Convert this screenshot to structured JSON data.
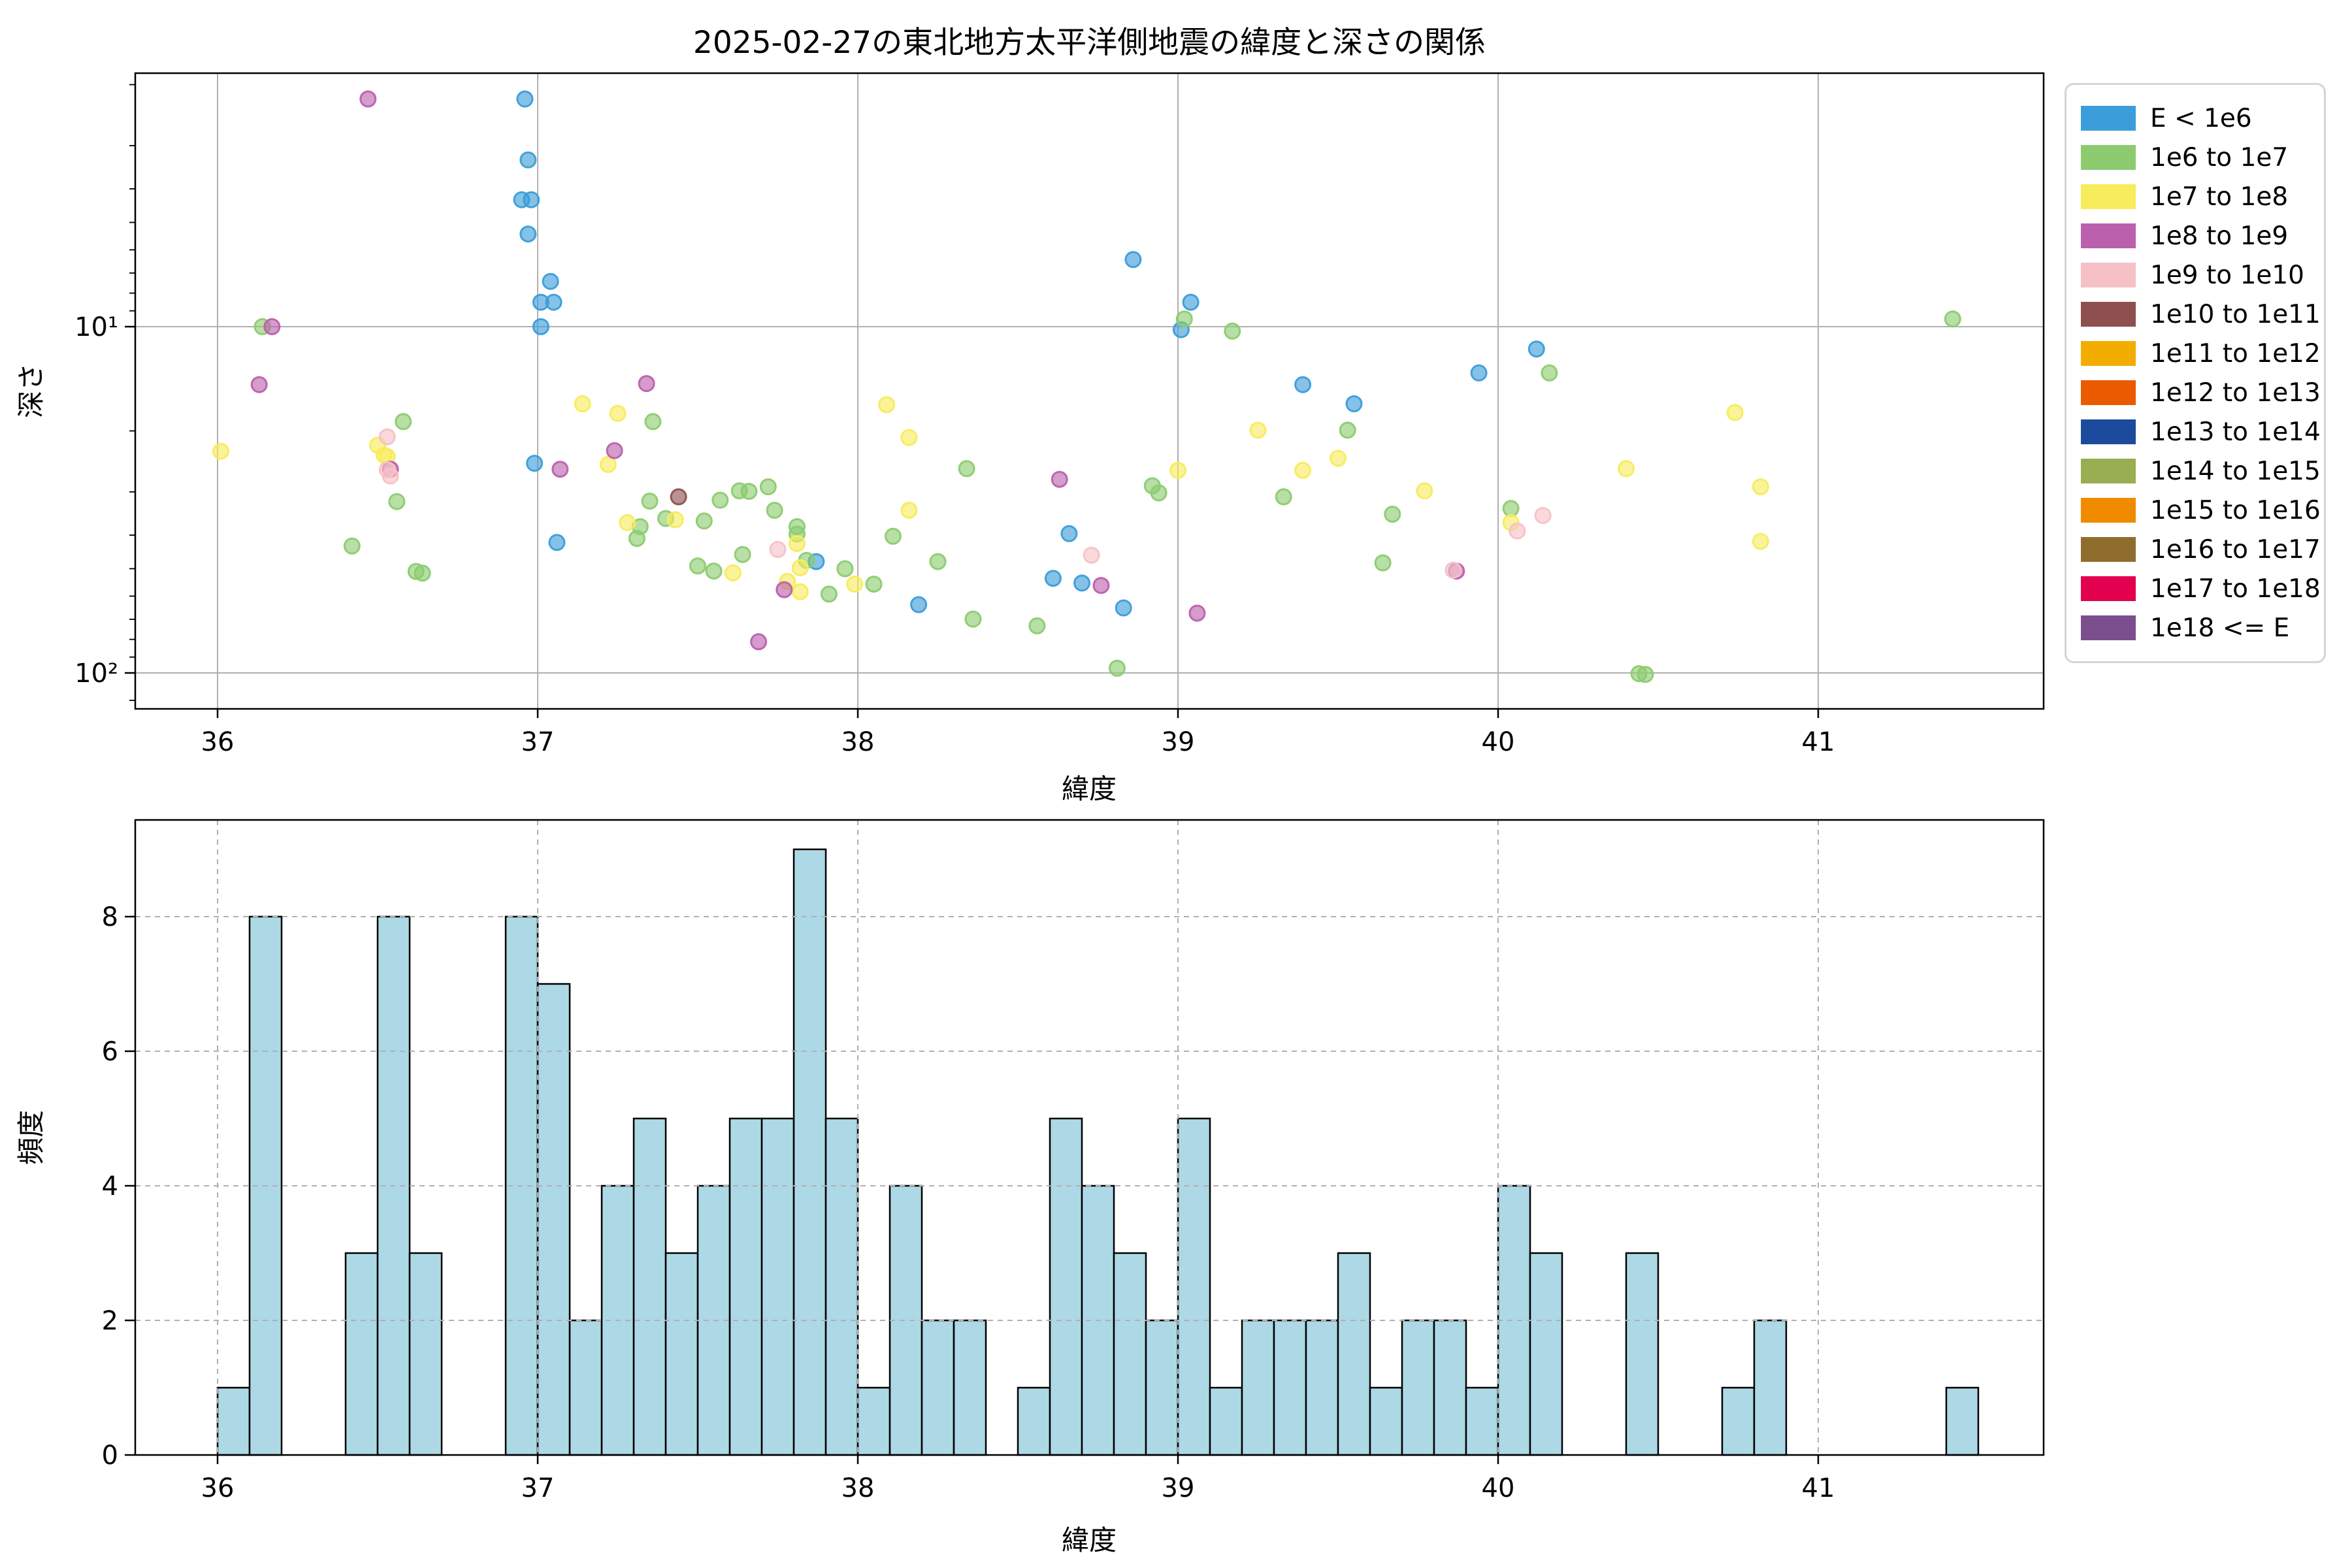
{
  "title": "2025-02-27の東北地方太平洋側地震の緯度と深さの関係",
  "scatter_plot": {
    "xlabel": "緯度",
    "ylabel": "深さ",
    "x_ticks": [
      36,
      37,
      38,
      39,
      40,
      41
    ],
    "y_tick_labels": [
      "10¹",
      "10²"
    ],
    "y_tick_values": [
      10,
      100
    ],
    "y_minor_ticks": [
      2,
      3,
      4,
      5,
      6,
      7,
      8,
      9,
      20,
      30,
      40,
      50,
      60,
      70,
      80,
      90,
      120
    ],
    "grid_color": "#b0b0b0",
    "grid_style": "solid"
  },
  "histogram": {
    "xlabel": "緯度",
    "ylabel": "頻度",
    "x_ticks": [
      36,
      37,
      38,
      39,
      40,
      41
    ],
    "y_ticks": [
      0,
      2,
      4,
      6,
      8
    ],
    "grid_color": "#b0b0b0",
    "grid_style": "dashed",
    "bar_fill": "#add8e6",
    "bar_edge": "#000000"
  },
  "legend": {
    "entries": [
      {
        "label": "E < 1e6",
        "color": "#3b9dd9"
      },
      {
        "label": "1e6 to 1e7",
        "color": "#8ccb70"
      },
      {
        "label": "1e7 to 1e8",
        "color": "#f7ec5c"
      },
      {
        "label": "1e8 to 1e9",
        "color": "#bb60ad"
      },
      {
        "label": "1e9 to 1e10",
        "color": "#f5c1c6"
      },
      {
        "label": "1e10 to 1e11",
        "color": "#8e504e"
      },
      {
        "label": "1e11 to 1e12",
        "color": "#f3ad00"
      },
      {
        "label": "1e12 to 1e13",
        "color": "#ea5a00"
      },
      {
        "label": "1e13 to 1e14",
        "color": "#1c4a9c"
      },
      {
        "label": "1e14 to 1e15",
        "color": "#99ad52"
      },
      {
        "label": "1e15 to 1e16",
        "color": "#f08b00"
      },
      {
        "label": "1e16 to 1e17",
        "color": "#8f6e2d"
      },
      {
        "label": "1e17 to 1e18",
        "color": "#e3004e"
      },
      {
        "label": "1e18 <= E",
        "color": "#7b4f8e"
      }
    ]
  },
  "chart_data": [
    {
      "type": "scatter",
      "title": "2025-02-27の東北地方太平洋側地震の緯度と深さの関係",
      "xlabel": "緯度",
      "ylabel": "深さ",
      "x_range": [
        35.74,
        41.7
      ],
      "y_axis": "log, inverted (depth increases downward)",
      "y_range": [
        1.85,
        127
      ],
      "legend_position": "outside upper right",
      "series": [
        {
          "name": "E < 1e6",
          "color": "#3b9dd9",
          "points": [
            [
              36.96,
              2.2
            ],
            [
              36.97,
              3.3
            ],
            [
              36.95,
              4.3
            ],
            [
              36.98,
              4.3
            ],
            [
              36.97,
              5.4
            ],
            [
              37.04,
              7.4
            ],
            [
              37.01,
              8.5
            ],
            [
              37.05,
              8.5
            ],
            [
              37.01,
              10.0
            ],
            [
              36.99,
              24.8
            ],
            [
              37.06,
              42.0
            ],
            [
              37.87,
              47.7
            ],
            [
              38.19,
              63.5
            ],
            [
              38.61,
              53.3
            ],
            [
              38.66,
              39.6
            ],
            [
              38.7,
              55.0
            ],
            [
              38.83,
              64.9
            ],
            [
              38.86,
              6.4
            ],
            [
              39.04,
              8.5
            ],
            [
              39.01,
              10.2
            ],
            [
              39.39,
              14.7
            ],
            [
              39.55,
              16.7
            ],
            [
              39.94,
              13.6
            ],
            [
              40.12,
              11.6
            ]
          ]
        },
        {
          "name": "1e6 to 1e7",
          "color": "#8ccb70",
          "points": [
            [
              36.14,
              10.0
            ],
            [
              36.42,
              43.0
            ],
            [
              36.56,
              32.0
            ],
            [
              36.58,
              18.8
            ],
            [
              36.62,
              50.9
            ],
            [
              36.64,
              51.5
            ],
            [
              37.31,
              40.9
            ],
            [
              37.32,
              37.8
            ],
            [
              37.35,
              31.9
            ],
            [
              37.36,
              18.8
            ],
            [
              37.4,
              35.8
            ],
            [
              37.5,
              49.1
            ],
            [
              37.52,
              36.4
            ],
            [
              37.55,
              50.8
            ],
            [
              37.57,
              31.7
            ],
            [
              37.63,
              29.8
            ],
            [
              37.66,
              29.9
            ],
            [
              37.64,
              45.5
            ],
            [
              37.72,
              29.0
            ],
            [
              37.74,
              33.9
            ],
            [
              37.81,
              37.8
            ],
            [
              37.81,
              39.7
            ],
            [
              37.84,
              47.3
            ],
            [
              37.91,
              59.2
            ],
            [
              37.96,
              50.0
            ],
            [
              38.05,
              55.4
            ],
            [
              38.11,
              40.3
            ],
            [
              38.25,
              47.7
            ],
            [
              38.34,
              25.7
            ],
            [
              38.36,
              69.9
            ],
            [
              38.56,
              73.1
            ],
            [
              38.81,
              96.9
            ],
            [
              38.92,
              28.8
            ],
            [
              38.94,
              30.2
            ],
            [
              39.02,
              9.5
            ],
            [
              39.17,
              10.3
            ],
            [
              39.33,
              31.0
            ],
            [
              39.53,
              19.9
            ],
            [
              39.64,
              48.1
            ],
            [
              39.67,
              34.8
            ],
            [
              40.04,
              33.5
            ],
            [
              40.16,
              13.6
            ],
            [
              40.44,
              100.5
            ],
            [
              40.46,
              101.0
            ],
            [
              41.42,
              9.5
            ]
          ]
        },
        {
          "name": "1e7 to 1e8",
          "color": "#f7ec5c",
          "points": [
            [
              36.01,
              22.9
            ],
            [
              36.5,
              22.0
            ],
            [
              36.52,
              23.5
            ],
            [
              36.53,
              23.7
            ],
            [
              37.14,
              16.7
            ],
            [
              37.25,
              17.8
            ],
            [
              37.22,
              25.0
            ],
            [
              37.28,
              36.8
            ],
            [
              37.43,
              36.1
            ],
            [
              37.61,
              51.4
            ],
            [
              37.78,
              54.4
            ],
            [
              37.81,
              42.3
            ],
            [
              37.82,
              49.7
            ],
            [
              37.82,
              58.3
            ],
            [
              37.99,
              55.4
            ],
            [
              38.09,
              16.8
            ],
            [
              38.16,
              20.9
            ],
            [
              38.16,
              33.9
            ],
            [
              39.0,
              26.0
            ],
            [
              39.25,
              19.9
            ],
            [
              39.39,
              26.0
            ],
            [
              39.5,
              24.0
            ],
            [
              39.77,
              29.8
            ],
            [
              40.04,
              36.8
            ],
            [
              40.4,
              25.7
            ],
            [
              40.74,
              17.7
            ],
            [
              40.82,
              29.0
            ],
            [
              40.82,
              41.7
            ]
          ]
        },
        {
          "name": "1e8 to 1e9",
          "color": "#bb60ad",
          "points": [
            [
              36.13,
              14.7
            ],
            [
              36.17,
              10.0
            ],
            [
              36.47,
              2.2
            ],
            [
              36.54,
              25.8
            ],
            [
              37.07,
              25.8
            ],
            [
              37.24,
              22.8
            ],
            [
              37.34,
              14.6
            ],
            [
              37.69,
              81.3
            ],
            [
              37.77,
              57.5
            ],
            [
              38.63,
              27.6
            ],
            [
              38.76,
              55.9
            ],
            [
              39.06,
              67.2
            ],
            [
              39.87,
              50.8
            ]
          ]
        },
        {
          "name": "1e9 to 1e10",
          "color": "#f5c1c6",
          "points": [
            [
              36.53,
              20.8
            ],
            [
              36.53,
              25.9
            ],
            [
              36.54,
              27.0
            ],
            [
              37.75,
              44.0
            ],
            [
              38.73,
              45.7
            ],
            [
              39.86,
              50.5
            ],
            [
              40.06,
              38.9
            ],
            [
              40.14,
              35.1
            ]
          ]
        },
        {
          "name": "1e10 to 1e11",
          "color": "#8e504e",
          "points": [
            [
              37.44,
              31.0
            ]
          ]
        }
      ]
    },
    {
      "type": "bar",
      "subtype": "histogram",
      "xlabel": "緯度",
      "ylabel": "頻度",
      "bin_start": 36.0,
      "bin_width": 0.1,
      "counts": [
        1,
        8,
        0,
        0,
        3,
        8,
        3,
        0,
        0,
        8,
        7,
        2,
        4,
        5,
        3,
        4,
        5,
        5,
        9,
        5,
        1,
        4,
        2,
        2,
        0,
        1,
        5,
        4,
        3,
        2,
        5,
        1,
        2,
        2,
        2,
        3,
        1,
        2,
        2,
        1,
        4,
        3,
        0,
        0,
        3,
        0,
        0,
        1,
        2,
        0,
        0,
        0,
        0,
        0,
        1
      ],
      "ylim": [
        0,
        9.45
      ],
      "x_range": [
        35.74,
        41.7
      ],
      "x_ticks": [
        36,
        37,
        38,
        39,
        40,
        41
      ],
      "y_ticks": [
        0,
        2,
        4,
        6,
        8
      ],
      "grid": "dashed"
    }
  ]
}
